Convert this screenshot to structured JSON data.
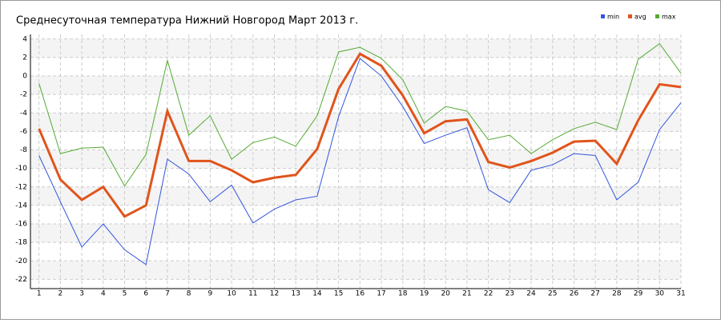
{
  "chart_data": {
    "type": "line",
    "title": "Среднесуточная температура Нижний Новгород  Март 2013 г.",
    "x": [
      1,
      2,
      3,
      4,
      5,
      6,
      7,
      8,
      9,
      10,
      11,
      12,
      13,
      14,
      15,
      16,
      17,
      18,
      19,
      20,
      21,
      22,
      23,
      24,
      25,
      26,
      27,
      28,
      29,
      30,
      31
    ],
    "xlim": [
      0.6,
      31
    ],
    "xticks": [
      1,
      2,
      3,
      4,
      5,
      6,
      7,
      8,
      9,
      10,
      11,
      12,
      13,
      14,
      15,
      16,
      17,
      18,
      19,
      20,
      21,
      22,
      23,
      24,
      25,
      26,
      27,
      28,
      29,
      30,
      31
    ],
    "ylim": [
      -23,
      4.5
    ],
    "yticks": [
      -22,
      -20,
      -18,
      -16,
      -14,
      -12,
      -10,
      -8,
      -6,
      -4,
      -2,
      0,
      2,
      4
    ],
    "grid": true,
    "legend": "upper right",
    "series": [
      {
        "name": "min",
        "color": "#3355dd",
        "values": [
          -8.6,
          -13.6,
          -18.5,
          -16,
          -18.8,
          -20.4,
          -9,
          -10.6,
          -13.6,
          -11.8,
          -15.9,
          -14.4,
          -13.4,
          -13,
          -4.4,
          1.9,
          0,
          -3.3,
          -7.3,
          -6.4,
          -5.6,
          -12.3,
          -13.7,
          -10.2,
          -9.6,
          -8.4,
          -8.6,
          -13.4,
          -11.5,
          -5.8,
          -2.9
        ]
      },
      {
        "name": "avg",
        "color": "#e0541c",
        "values": [
          -5.7,
          -11.2,
          -13.4,
          -12,
          -15.2,
          -14,
          -3.8,
          -9.2,
          -9.2,
          -10.2,
          -11.5,
          -11,
          -10.7,
          -7.9,
          -1.4,
          2.4,
          1.1,
          -2.1,
          -6.2,
          -4.9,
          -4.7,
          -9.3,
          -9.9,
          -9.2,
          -8.3,
          -7.1,
          -7,
          -9.5,
          -4.8,
          -0.9,
          -1.2
        ]
      },
      {
        "name": "max",
        "color": "#55aa33",
        "values": [
          -0.8,
          -8.4,
          -7.8,
          -7.7,
          -11.9,
          -8.5,
          1.7,
          -6.4,
          -4.3,
          -9,
          -7.2,
          -6.6,
          -7.6,
          -4.3,
          2.6,
          3.1,
          1.9,
          -0.4,
          -5.1,
          -3.3,
          -3.8,
          -6.9,
          -6.4,
          -8.4,
          -6.9,
          -5.7,
          -5,
          -5.8,
          1.8,
          3.5,
          0.3
        ]
      }
    ]
  }
}
